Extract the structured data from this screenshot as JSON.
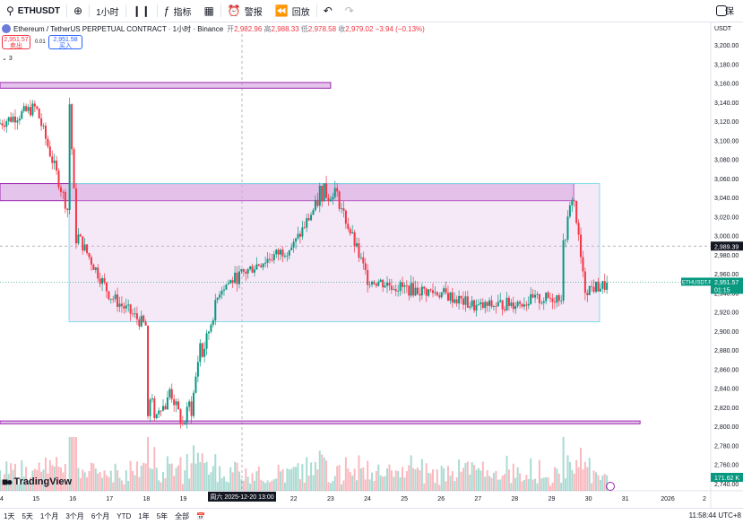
{
  "toolbar": {
    "symbol": "ETHUSDT",
    "interval": "1小时",
    "indicators_label": "指标",
    "alerts_label": "警报",
    "replay_label": "回放",
    "right_label": "保"
  },
  "legend": {
    "title": "Ethereum / TetherUS PERPETUAL CONTRACT · 1小时 · Binance",
    "open_label": "开",
    "open": "2,982.96",
    "high_label": "高",
    "high": "2,988.33",
    "low_label": "低",
    "low": "2,978.58",
    "close_label": "收",
    "close": "2,979.02",
    "change": "−3.94 (−0.13%)"
  },
  "trade": {
    "sell_price": "2,951.57",
    "sell_label": "卖出",
    "spread": "0.01",
    "buy_price": "2,951.58",
    "buy_label": "买入",
    "collapse_count": "3"
  },
  "price_axis": {
    "currency": "USDT",
    "ticks": [
      "3,200.00",
      "3,180.00",
      "3,160.00",
      "3,140.00",
      "3,120.00",
      "3,100.00",
      "3,080.00",
      "3,060.00",
      "3,040.00",
      "3,020.00",
      "3,000.00",
      "2,980.00",
      "2,960.00",
      "2,940.00",
      "2,920.00",
      "2,900.00",
      "2,880.00",
      "2,860.00",
      "2,840.00",
      "2,820.00",
      "2,800.00",
      "2,780.00",
      "2,760.00",
      "2,740.00"
    ],
    "crosshair_price": "2,989.39",
    "symbol_tag": "ETHUSDT.P",
    "last_price": "2,951.57",
    "countdown": "01:15",
    "volume_tag": "171.62 K"
  },
  "time_axis": {
    "ticks": [
      "4",
      "15",
      "16",
      "17",
      "18",
      "19",
      "20",
      "22",
      "23",
      "24",
      "25",
      "26",
      "27",
      "28",
      "29",
      "30",
      "31",
      "2026",
      "2"
    ],
    "crosshair_time": "周六 2025-12-20   13:00"
  },
  "bottom_bar": {
    "ranges": [
      "1天",
      "5天",
      "1个月",
      "3个月",
      "6个月",
      "YTD",
      "1年",
      "5年",
      "全部"
    ],
    "clock": "11:58:44 UTC+8"
  },
  "branding": {
    "name": "TradingView"
  },
  "colors": {
    "up": "#089981",
    "down": "#f23645",
    "zone_fill": "#e1bee7",
    "zone_border": "#9c27b0",
    "range_border": "#80deea"
  },
  "chart_data": {
    "type": "candlestick",
    "symbol": "ETHUSDT.P",
    "timeframe": "1小时",
    "ylim": [
      2730,
      3215
    ],
    "days": [
      "14",
      "15",
      "16",
      "17",
      "18",
      "19",
      "20",
      "21",
      "22",
      "23",
      "24",
      "25",
      "26",
      "27",
      "28",
      "29",
      "30",
      "31",
      "2026",
      "2"
    ],
    "day_closes": [
      3118,
      3135,
      3010,
      2938,
      2905,
      2800,
      2945,
      2970,
      2990,
      3060,
      2955,
      2945,
      2940,
      2925,
      2930,
      2935,
      2945,
      2951
    ],
    "zones": [
      {
        "type": "resistance",
        "from_day": "14",
        "to_day": "23",
        "low": 3155,
        "high": 3161
      },
      {
        "type": "resistance",
        "from_day": "14",
        "to_day": "29.6",
        "low": 3037,
        "high": 3055
      },
      {
        "type": "range",
        "from_day": "15.9",
        "to_day": "30.3",
        "low": 2910,
        "high": 3055
      },
      {
        "type": "support",
        "from_day": "14",
        "to_day": "31.4",
        "low": 2803,
        "high": 2806
      }
    ],
    "last_price": 2951.57,
    "crosshair_price": 2989.39
  }
}
